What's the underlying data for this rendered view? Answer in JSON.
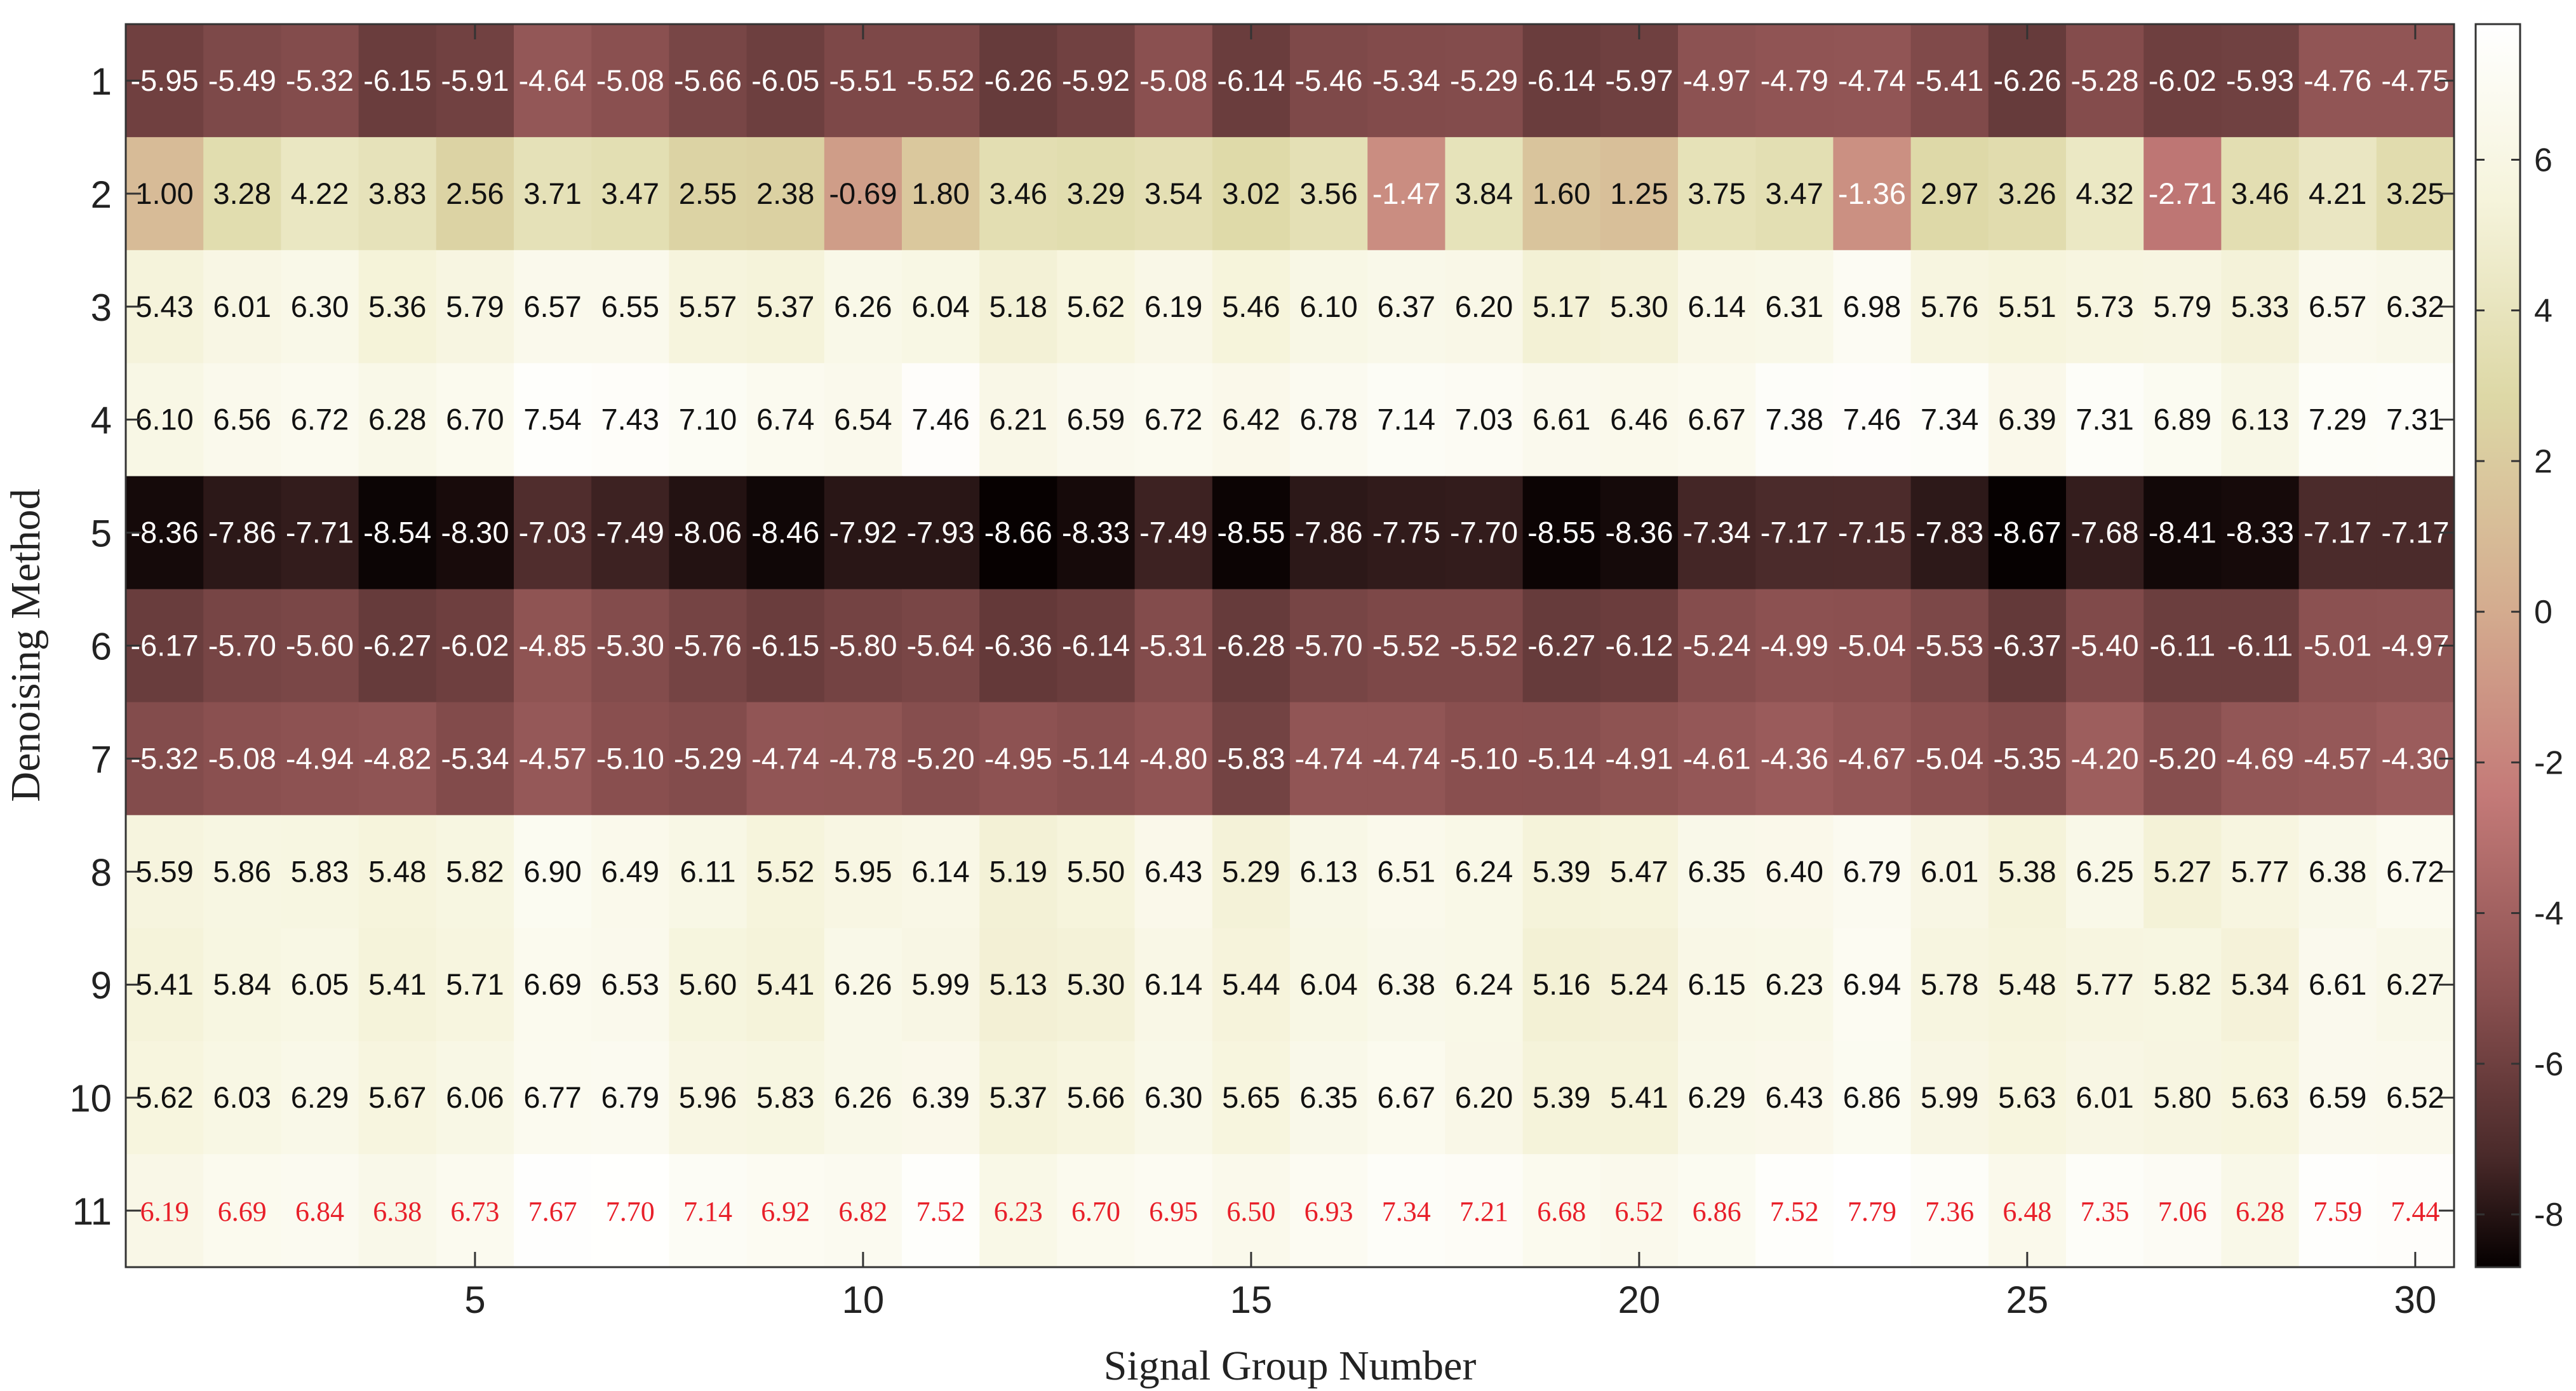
{
  "chart_data": {
    "type": "heatmap",
    "xlabel": "Signal Group Number",
    "ylabel": "Denoising Method",
    "x_ticks": [
      5,
      10,
      15,
      20,
      25,
      30
    ],
    "y_ticks": [
      1,
      2,
      3,
      4,
      5,
      6,
      7,
      8,
      9,
      10,
      11
    ],
    "columns": [
      1,
      2,
      3,
      4,
      5,
      6,
      7,
      8,
      9,
      10,
      11,
      12,
      13,
      14,
      15,
      16,
      17,
      18,
      19,
      20,
      21,
      22,
      23,
      24,
      25,
      26,
      27,
      28,
      29,
      30
    ],
    "rows": [
      1,
      2,
      3,
      4,
      5,
      6,
      7,
      8,
      9,
      10,
      11
    ],
    "values": [
      [
        -5.95,
        -5.49,
        -5.32,
        -6.15,
        -5.91,
        -4.64,
        -5.08,
        -5.66,
        -6.05,
        -5.51,
        -5.52,
        -6.26,
        -5.92,
        -5.08,
        -6.14,
        -5.46,
        -5.34,
        -5.29,
        -6.14,
        -5.97,
        -4.97,
        -4.79,
        -4.74,
        -5.41,
        -6.26,
        -5.28,
        -6.02,
        -5.93,
        -4.76,
        -4.75
      ],
      [
        1.0,
        3.28,
        4.22,
        3.83,
        2.56,
        3.71,
        3.47,
        2.55,
        2.38,
        -0.69,
        1.8,
        3.46,
        3.29,
        3.54,
        3.02,
        3.56,
        -1.47,
        3.84,
        1.6,
        1.25,
        3.75,
        3.47,
        -1.36,
        2.97,
        3.26,
        4.32,
        -2.71,
        3.46,
        4.21,
        3.25
      ],
      [
        5.43,
        6.01,
        6.3,
        5.36,
        5.79,
        6.57,
        6.55,
        5.57,
        5.37,
        6.26,
        6.04,
        5.18,
        5.62,
        6.19,
        5.46,
        6.1,
        6.37,
        6.2,
        5.17,
        5.3,
        6.14,
        6.31,
        6.98,
        5.76,
        5.51,
        5.73,
        5.79,
        5.33,
        6.57,
        6.32
      ],
      [
        6.1,
        6.56,
        6.72,
        6.28,
        6.7,
        7.54,
        7.43,
        7.1,
        6.74,
        6.54,
        7.46,
        6.21,
        6.59,
        6.72,
        6.42,
        6.78,
        7.14,
        7.03,
        6.61,
        6.46,
        6.67,
        7.38,
        7.46,
        7.34,
        6.39,
        7.31,
        6.89,
        6.13,
        7.29,
        7.31
      ],
      [
        -8.36,
        -7.86,
        -7.71,
        -8.54,
        -8.3,
        -7.03,
        -7.49,
        -8.06,
        -8.46,
        -7.92,
        -7.93,
        -8.66,
        -8.33,
        -7.49,
        -8.55,
        -7.86,
        -7.75,
        -7.7,
        -8.55,
        -8.36,
        -7.34,
        -7.17,
        -7.15,
        -7.83,
        -8.67,
        -7.68,
        -8.41,
        -8.33,
        -7.17,
        -7.17
      ],
      [
        -6.17,
        -5.7,
        -5.6,
        -6.27,
        -6.02,
        -4.85,
        -5.3,
        -5.76,
        -6.15,
        -5.8,
        -5.64,
        -6.36,
        -6.14,
        -5.31,
        -6.28,
        -5.7,
        -5.52,
        -5.52,
        -6.27,
        -6.12,
        -5.24,
        -4.99,
        -5.04,
        -5.53,
        -6.37,
        -5.4,
        -6.11,
        -6.11,
        -5.01,
        -4.97
      ],
      [
        -5.32,
        -5.08,
        -4.94,
        -4.82,
        -5.34,
        -4.57,
        -5.1,
        -5.29,
        -4.74,
        -4.78,
        -5.2,
        -4.95,
        -5.14,
        -4.8,
        -5.83,
        -4.74,
        -4.74,
        -5.1,
        -5.14,
        -4.91,
        -4.61,
        -4.36,
        -4.67,
        -5.04,
        -5.35,
        -4.2,
        -5.2,
        -4.69,
        -4.57,
        -4.3
      ],
      [
        5.59,
        5.86,
        5.83,
        5.48,
        5.82,
        6.9,
        6.49,
        6.11,
        5.52,
        5.95,
        6.14,
        5.19,
        5.5,
        6.43,
        5.29,
        6.13,
        6.51,
        6.24,
        5.39,
        5.47,
        6.35,
        6.4,
        6.79,
        6.01,
        5.38,
        6.25,
        5.27,
        5.77,
        6.38,
        6.72
      ],
      [
        5.41,
        5.84,
        6.05,
        5.41,
        5.71,
        6.69,
        6.53,
        5.6,
        5.41,
        6.26,
        5.99,
        5.13,
        5.3,
        6.14,
        5.44,
        6.04,
        6.38,
        6.24,
        5.16,
        5.24,
        6.15,
        6.23,
        6.94,
        5.78,
        5.48,
        5.77,
        5.82,
        5.34,
        6.61,
        6.27
      ],
      [
        5.62,
        6.03,
        6.29,
        5.67,
        6.06,
        6.77,
        6.79,
        5.96,
        5.83,
        6.26,
        6.39,
        5.37,
        5.66,
        6.3,
        5.65,
        6.35,
        6.67,
        6.2,
        5.39,
        5.41,
        6.29,
        6.43,
        6.86,
        5.99,
        5.63,
        6.01,
        5.8,
        5.63,
        6.59,
        6.52
      ],
      [
        6.19,
        6.69,
        6.84,
        6.38,
        6.73,
        7.67,
        7.7,
        7.14,
        6.92,
        6.82,
        7.52,
        6.23,
        6.7,
        6.95,
        6.5,
        6.93,
        7.34,
        7.21,
        6.68,
        6.52,
        6.86,
        7.52,
        7.79,
        7.36,
        6.48,
        7.35,
        7.06,
        6.28,
        7.59,
        7.44
      ]
    ],
    "highlight_row": 11,
    "highlight_color": "#e8202a",
    "color_range": [
      -8.7,
      7.8
    ],
    "colorbar_ticks": [
      6,
      4,
      2,
      0,
      -2,
      -4,
      -6,
      -8
    ],
    "colormap": "pink"
  }
}
